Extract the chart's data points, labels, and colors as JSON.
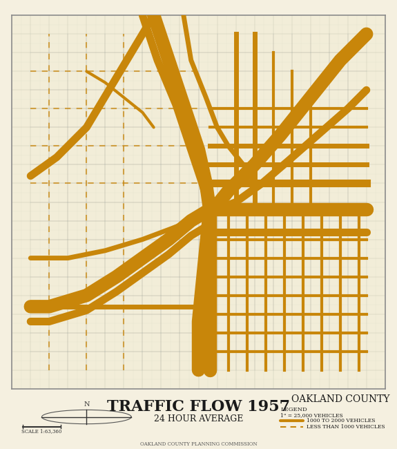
{
  "title": "TRAFFIC FLOW 1957",
  "subtitle": "24 HOUR AVERAGE",
  "county": "OAKLAND COUNTY",
  "bg_color": "#F5F0E0",
  "map_bg": "#F2EDD8",
  "border_color": "#8B8B8B",
  "grid_color": "#CCCCBB",
  "road_color": "#888888",
  "flow_color": "#C8860A",
  "title_color": "#1A1A1A",
  "figsize": [
    5.75,
    6.5
  ],
  "dpi": 100,
  "title_fontsize": 16,
  "subtitle_fontsize": 9,
  "county_fontsize": 10
}
